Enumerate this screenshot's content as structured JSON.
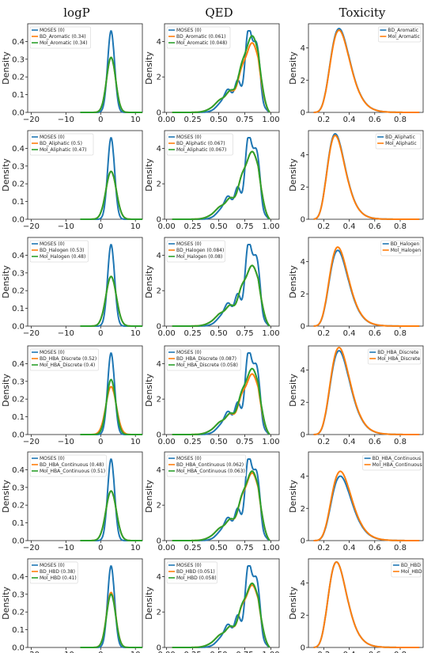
{
  "titles": [
    "logP",
    "QED",
    "Toxicity"
  ],
  "ylabel": "Density",
  "colors": {
    "moses": "#1f77b4",
    "bd": "#ff7f0e",
    "mol": "#2ca02c"
  },
  "xticks": {
    "logP": [
      -20,
      -10,
      0,
      10
    ],
    "QED": [
      "0.00",
      "0.25",
      "0.50",
      "0.75",
      "1.00"
    ],
    "Toxicity": [
      "0.2",
      "0.4",
      "0.6",
      "0.8"
    ]
  },
  "chart_data": [
    {
      "type": "line",
      "row": 1,
      "col": "logP",
      "ylim": [
        0,
        0.5
      ],
      "xlim": [
        -21,
        12
      ],
      "yticks": [
        "0.0",
        "0.1",
        "0.2",
        "0.3",
        "0.4"
      ],
      "legend": [
        "MOSES (0)",
        "BD_Aromatic (0.34)",
        "Mol_Aromatic (0.34)"
      ],
      "series": [
        {
          "name": "MOSES (0)",
          "kind": "moses",
          "center": 3,
          "sd": 1.0,
          "peak": 0.46
        },
        {
          "name": "BD_Aromatic (0.34)",
          "kind": "bd",
          "center": 3,
          "sd": 1.3,
          "peak": 0.31
        },
        {
          "name": "Mol_Aromatic (0.34)",
          "kind": "mol",
          "center": 3,
          "sd": 1.3,
          "peak": 0.31
        }
      ]
    },
    {
      "type": "line",
      "row": 1,
      "col": "QED",
      "ylim": [
        0,
        5
      ],
      "xlim": [
        -0.02,
        1.08
      ],
      "yticks": [
        "0",
        "2",
        "4"
      ],
      "legend": [
        "MOSES (0)",
        "BD_Aromatic (0.061)",
        "Mol_Aromatic (0.048)"
      ],
      "series": [
        {
          "name": "MOSES (0)",
          "kind": "moses",
          "peak": 4.6
        },
        {
          "name": "BD_Aromatic (0.061)",
          "kind": "bd",
          "peak": 3.8
        },
        {
          "name": "Mol_Aromatic (0.048)",
          "kind": "mol",
          "peak": 4.2
        }
      ]
    },
    {
      "type": "line",
      "row": 1,
      "col": "Toxicity",
      "ylim": [
        0,
        5.5
      ],
      "xlim": [
        0.08,
        0.98
      ],
      "yticks": [
        "0",
        "2",
        "4"
      ],
      "legend": [
        "BD_Aromatic",
        "Mol_Aromatic"
      ],
      "series": [
        {
          "name": "BD_Aromatic",
          "kind": "moses",
          "peak": 5.2,
          "mode": 0.32
        },
        {
          "name": "Mol_Aromatic",
          "kind": "bd",
          "peak": 5.1,
          "mode": 0.32
        }
      ]
    },
    {
      "type": "line",
      "row": 2,
      "col": "logP",
      "ylim": [
        0,
        0.5
      ],
      "xlim": [
        -21,
        12
      ],
      "yticks": [
        "0.0",
        "0.1",
        "0.2",
        "0.3",
        "0.4"
      ],
      "legend": [
        "MOSES (0)",
        "BD_Aliphatic (0.5)",
        "Mol_Aliphatic (0.47)"
      ],
      "series": [
        {
          "name": "MOSES (0)",
          "kind": "moses",
          "center": 3,
          "sd": 1.0,
          "peak": 0.46
        },
        {
          "name": "BD_Aliphatic (0.5)",
          "kind": "bd",
          "center": 3,
          "sd": 1.5,
          "peak": 0.27
        },
        {
          "name": "Mol_Aliphatic (0.47)",
          "kind": "mol",
          "center": 3,
          "sd": 1.5,
          "peak": 0.27
        }
      ]
    },
    {
      "type": "line",
      "row": 2,
      "col": "QED",
      "ylim": [
        0,
        5
      ],
      "xlim": [
        -0.02,
        1.08
      ],
      "yticks": [
        "0",
        "2",
        "4"
      ],
      "legend": [
        "MOSES (0)",
        "BD_Aliphatic (0.067)",
        "Mol_Aliphatic (0.067)"
      ],
      "series": [
        {
          "name": "MOSES (0)",
          "kind": "moses",
          "peak": 4.6
        },
        {
          "name": "BD_Aliphatic (0.067)",
          "kind": "bd",
          "peak": 3.7
        },
        {
          "name": "Mol_Aliphatic (0.067)",
          "kind": "mol",
          "peak": 3.7
        }
      ]
    },
    {
      "type": "line",
      "row": 2,
      "col": "Toxicity",
      "ylim": [
        0,
        5.5
      ],
      "xlim": [
        0.08,
        0.98
      ],
      "yticks": [
        "0",
        "2",
        "4"
      ],
      "legend": [
        "BD_Aliphatic",
        "Mol_Aliphatic"
      ],
      "series": [
        {
          "name": "BD_Aliphatic",
          "kind": "moses",
          "peak": 5.3,
          "mode": 0.29
        },
        {
          "name": "Mol_Aliphatic",
          "kind": "bd",
          "peak": 5.2,
          "mode": 0.29
        }
      ]
    },
    {
      "type": "line",
      "row": 3,
      "col": "logP",
      "ylim": [
        0,
        0.5
      ],
      "xlim": [
        -21,
        12
      ],
      "yticks": [
        "0.0",
        "0.1",
        "0.2",
        "0.3",
        "0.4"
      ],
      "legend": [
        "MOSES (0)",
        "BD_Halogen (0.53)",
        "Mol_Halogen (0.48)"
      ],
      "series": [
        {
          "name": "MOSES (0)",
          "kind": "moses",
          "center": 3,
          "sd": 1.0,
          "peak": 0.46
        },
        {
          "name": "BD_Halogen (0.53)",
          "kind": "bd",
          "center": 3,
          "sd": 1.5,
          "peak": 0.28
        },
        {
          "name": "Mol_Halogen (0.48)",
          "kind": "mol",
          "center": 3,
          "sd": 1.5,
          "peak": 0.28
        }
      ]
    },
    {
      "type": "line",
      "row": 3,
      "col": "QED",
      "ylim": [
        0,
        5
      ],
      "xlim": [
        -0.02,
        1.08
      ],
      "yticks": [
        "0",
        "2",
        "4"
      ],
      "legend": [
        "MOSES (0)",
        "BD_Halogen (0.084)",
        "Mol_Halogen (0.08)"
      ],
      "series": [
        {
          "name": "MOSES (0)",
          "kind": "moses",
          "peak": 4.6
        },
        {
          "name": "BD_Halogen (0.084)",
          "kind": "bd",
          "peak": 3.3
        },
        {
          "name": "Mol_Halogen (0.08)",
          "kind": "mol",
          "peak": 3.3
        }
      ]
    },
    {
      "type": "line",
      "row": 3,
      "col": "Toxicity",
      "ylim": [
        0,
        5.5
      ],
      "xlim": [
        0.08,
        0.98
      ],
      "yticks": [
        "0",
        "2",
        "4"
      ],
      "legend": [
        "BD_Halogen",
        "Mol_Halogen"
      ],
      "series": [
        {
          "name": "BD_Halogen",
          "kind": "moses",
          "peak": 4.7,
          "mode": 0.31
        },
        {
          "name": "Mol_Halogen",
          "kind": "bd",
          "peak": 4.9,
          "mode": 0.31
        }
      ]
    },
    {
      "type": "line",
      "row": 4,
      "col": "logP",
      "ylim": [
        0,
        0.5
      ],
      "xlim": [
        -21,
        12
      ],
      "yticks": [
        "0.0",
        "0.1",
        "0.2",
        "0.3",
        "0.4"
      ],
      "legend": [
        "MOSES (0)",
        "BD_HBA_Discrete (0.52)",
        "Mol_HBA_Discrete (0.4)"
      ],
      "series": [
        {
          "name": "MOSES (0)",
          "kind": "moses",
          "center": 3,
          "sd": 1.0,
          "peak": 0.46
        },
        {
          "name": "BD_HBA_Discrete (0.52)",
          "kind": "bd",
          "center": 3,
          "sd": 1.5,
          "peak": 0.27
        },
        {
          "name": "Mol_HBA_Discrete (0.4)",
          "kind": "mol",
          "center": 3,
          "sd": 1.3,
          "peak": 0.31
        }
      ]
    },
    {
      "type": "line",
      "row": 4,
      "col": "QED",
      "ylim": [
        0,
        5
      ],
      "xlim": [
        -0.02,
        1.08
      ],
      "yticks": [
        "0",
        "2",
        "4"
      ],
      "legend": [
        "MOSES (0)",
        "BD_HBA_Discrete (0.087)",
        "Mol_HBA_Discrete (0.058)"
      ],
      "series": [
        {
          "name": "MOSES (0)",
          "kind": "moses",
          "peak": 4.6
        },
        {
          "name": "BD_HBA_Discrete (0.087)",
          "kind": "bd",
          "peak": 3.3
        },
        {
          "name": "Mol_HBA_Discrete (0.058)",
          "kind": "mol",
          "peak": 3.6
        }
      ]
    },
    {
      "type": "line",
      "row": 4,
      "col": "Toxicity",
      "ylim": [
        0,
        5.5
      ],
      "xlim": [
        0.08,
        0.98
      ],
      "yticks": [
        "0",
        "2",
        "4"
      ],
      "legend": [
        "BD_HBA_Discrete",
        "Mol_HBA_Discrete"
      ],
      "series": [
        {
          "name": "BD_HBA_Discrete",
          "kind": "moses",
          "peak": 5.2,
          "mode": 0.32
        },
        {
          "name": "Mol_HBA_Discrete",
          "kind": "bd",
          "peak": 5.4,
          "mode": 0.32
        }
      ]
    },
    {
      "type": "line",
      "row": 5,
      "col": "logP",
      "ylim": [
        0,
        0.5
      ],
      "xlim": [
        -21,
        12
      ],
      "yticks": [
        "0.0",
        "0.1",
        "0.2",
        "0.3",
        "0.4"
      ],
      "legend": [
        "MOSES (0)",
        "BD_HBA_Continuous (0.48)",
        "Mol_HBA_Continuous (0.51)"
      ],
      "series": [
        {
          "name": "MOSES (0)",
          "kind": "moses",
          "center": 3,
          "sd": 1.0,
          "peak": 0.46
        },
        {
          "name": "BD_HBA_Continuous (0.48)",
          "kind": "bd",
          "center": 3,
          "sd": 1.5,
          "peak": 0.28
        },
        {
          "name": "Mol_HBA_Continuous (0.51)",
          "kind": "mol",
          "center": 3,
          "sd": 1.5,
          "peak": 0.28
        }
      ]
    },
    {
      "type": "line",
      "row": 5,
      "col": "QED",
      "ylim": [
        0,
        5
      ],
      "xlim": [
        -0.02,
        1.08
      ],
      "yticks": [
        "0",
        "2",
        "4"
      ],
      "legend": [
        "MOSES (0)",
        "BD_HBA_Continuous (0.062)",
        "Mol_HBA_Continuous (0.063)"
      ],
      "series": [
        {
          "name": "MOSES (0)",
          "kind": "moses",
          "peak": 4.6
        },
        {
          "name": "BD_HBA_Continuous (0.062)",
          "kind": "bd",
          "peak": 3.7
        },
        {
          "name": "Mol_HBA_Continuous (0.063)",
          "kind": "mol",
          "peak": 3.8
        }
      ]
    },
    {
      "type": "line",
      "row": 5,
      "col": "Toxicity",
      "ylim": [
        0,
        5.5
      ],
      "xlim": [
        0.08,
        0.98
      ],
      "yticks": [
        "0",
        "2",
        "4"
      ],
      "legend": [
        "BD_HBA_Continuous",
        "Mol_HBA_Continuous"
      ],
      "series": [
        {
          "name": "BD_HBA_Continuous",
          "kind": "moses",
          "peak": 4.0,
          "mode": 0.33
        },
        {
          "name": "Mol_HBA_Continuous",
          "kind": "bd",
          "peak": 4.3,
          "mode": 0.33
        }
      ]
    },
    {
      "type": "line",
      "row": 6,
      "col": "logP",
      "ylim": [
        0,
        0.5
      ],
      "xlim": [
        -21,
        12
      ],
      "yticks": [
        "0.0",
        "0.1",
        "0.2",
        "0.3",
        "0.4"
      ],
      "legend": [
        "MOSES (0)",
        "BD_HBD (0.38)",
        "Mol_HBD (0.41)"
      ],
      "series": [
        {
          "name": "MOSES (0)",
          "kind": "moses",
          "center": 3,
          "sd": 1.0,
          "peak": 0.46
        },
        {
          "name": "BD_HBD (0.38)",
          "kind": "bd",
          "center": 3,
          "sd": 1.3,
          "peak": 0.31
        },
        {
          "name": "Mol_HBD (0.41)",
          "kind": "mol",
          "center": 3,
          "sd": 1.3,
          "peak": 0.3
        }
      ]
    },
    {
      "type": "line",
      "row": 6,
      "col": "QED",
      "ylim": [
        0,
        5
      ],
      "xlim": [
        -0.02,
        1.08
      ],
      "yticks": [
        "0",
        "2",
        "4"
      ],
      "legend": [
        "MOSES (0)",
        "BD_HBD (0.051)",
        "Mol_HBD (0.058)"
      ],
      "series": [
        {
          "name": "MOSES (0)",
          "kind": "moses",
          "peak": 4.6
        },
        {
          "name": "BD_HBD (0.051)",
          "kind": "bd",
          "peak": 3.4
        },
        {
          "name": "Mol_HBD (0.058)",
          "kind": "mol",
          "peak": 3.5
        }
      ]
    },
    {
      "type": "line",
      "row": 6,
      "col": "Toxicity",
      "ylim": [
        0,
        5.5
      ],
      "xlim": [
        0.08,
        0.98
      ],
      "yticks": [
        "0",
        "2",
        "4"
      ],
      "legend": [
        "BD_HBD",
        "Mol_HBD"
      ],
      "series": [
        {
          "name": "BD_HBD",
          "kind": "moses",
          "peak": 5.3,
          "mode": 0.3
        },
        {
          "name": "Mol_HBD",
          "kind": "bd",
          "peak": 5.3,
          "mode": 0.3
        }
      ]
    }
  ]
}
